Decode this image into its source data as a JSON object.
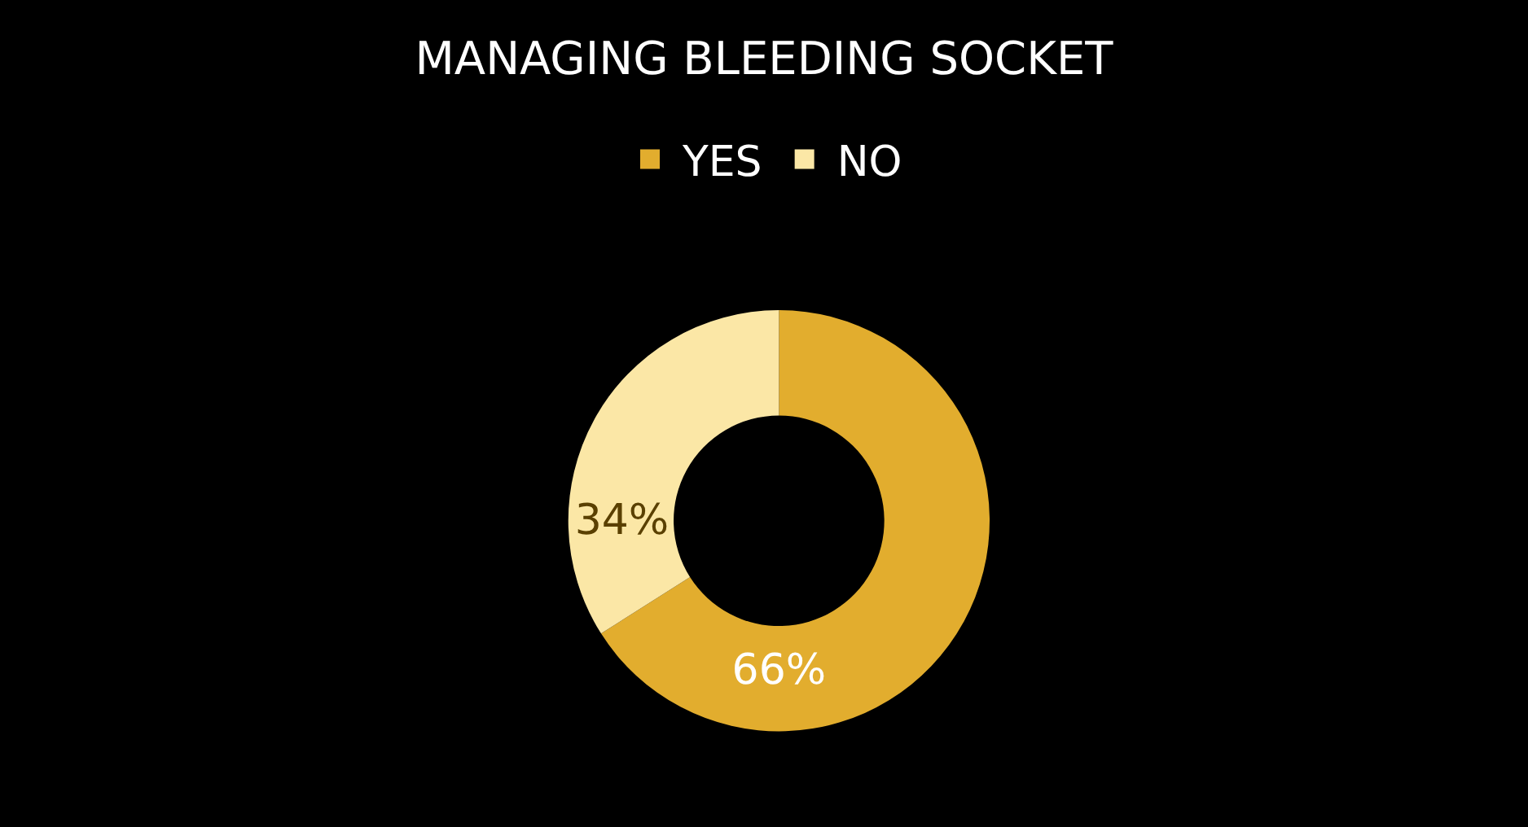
{
  "chart_data": {
    "type": "donut",
    "title": "MANAGING BLEEDING SOCKET",
    "categories": [
      "YES",
      "NO"
    ],
    "values": [
      66,
      34
    ],
    "colors": [
      "#e2ad2e",
      "#fbe7a6"
    ],
    "value_labels": [
      "66%",
      "34%"
    ],
    "legend": "top"
  }
}
